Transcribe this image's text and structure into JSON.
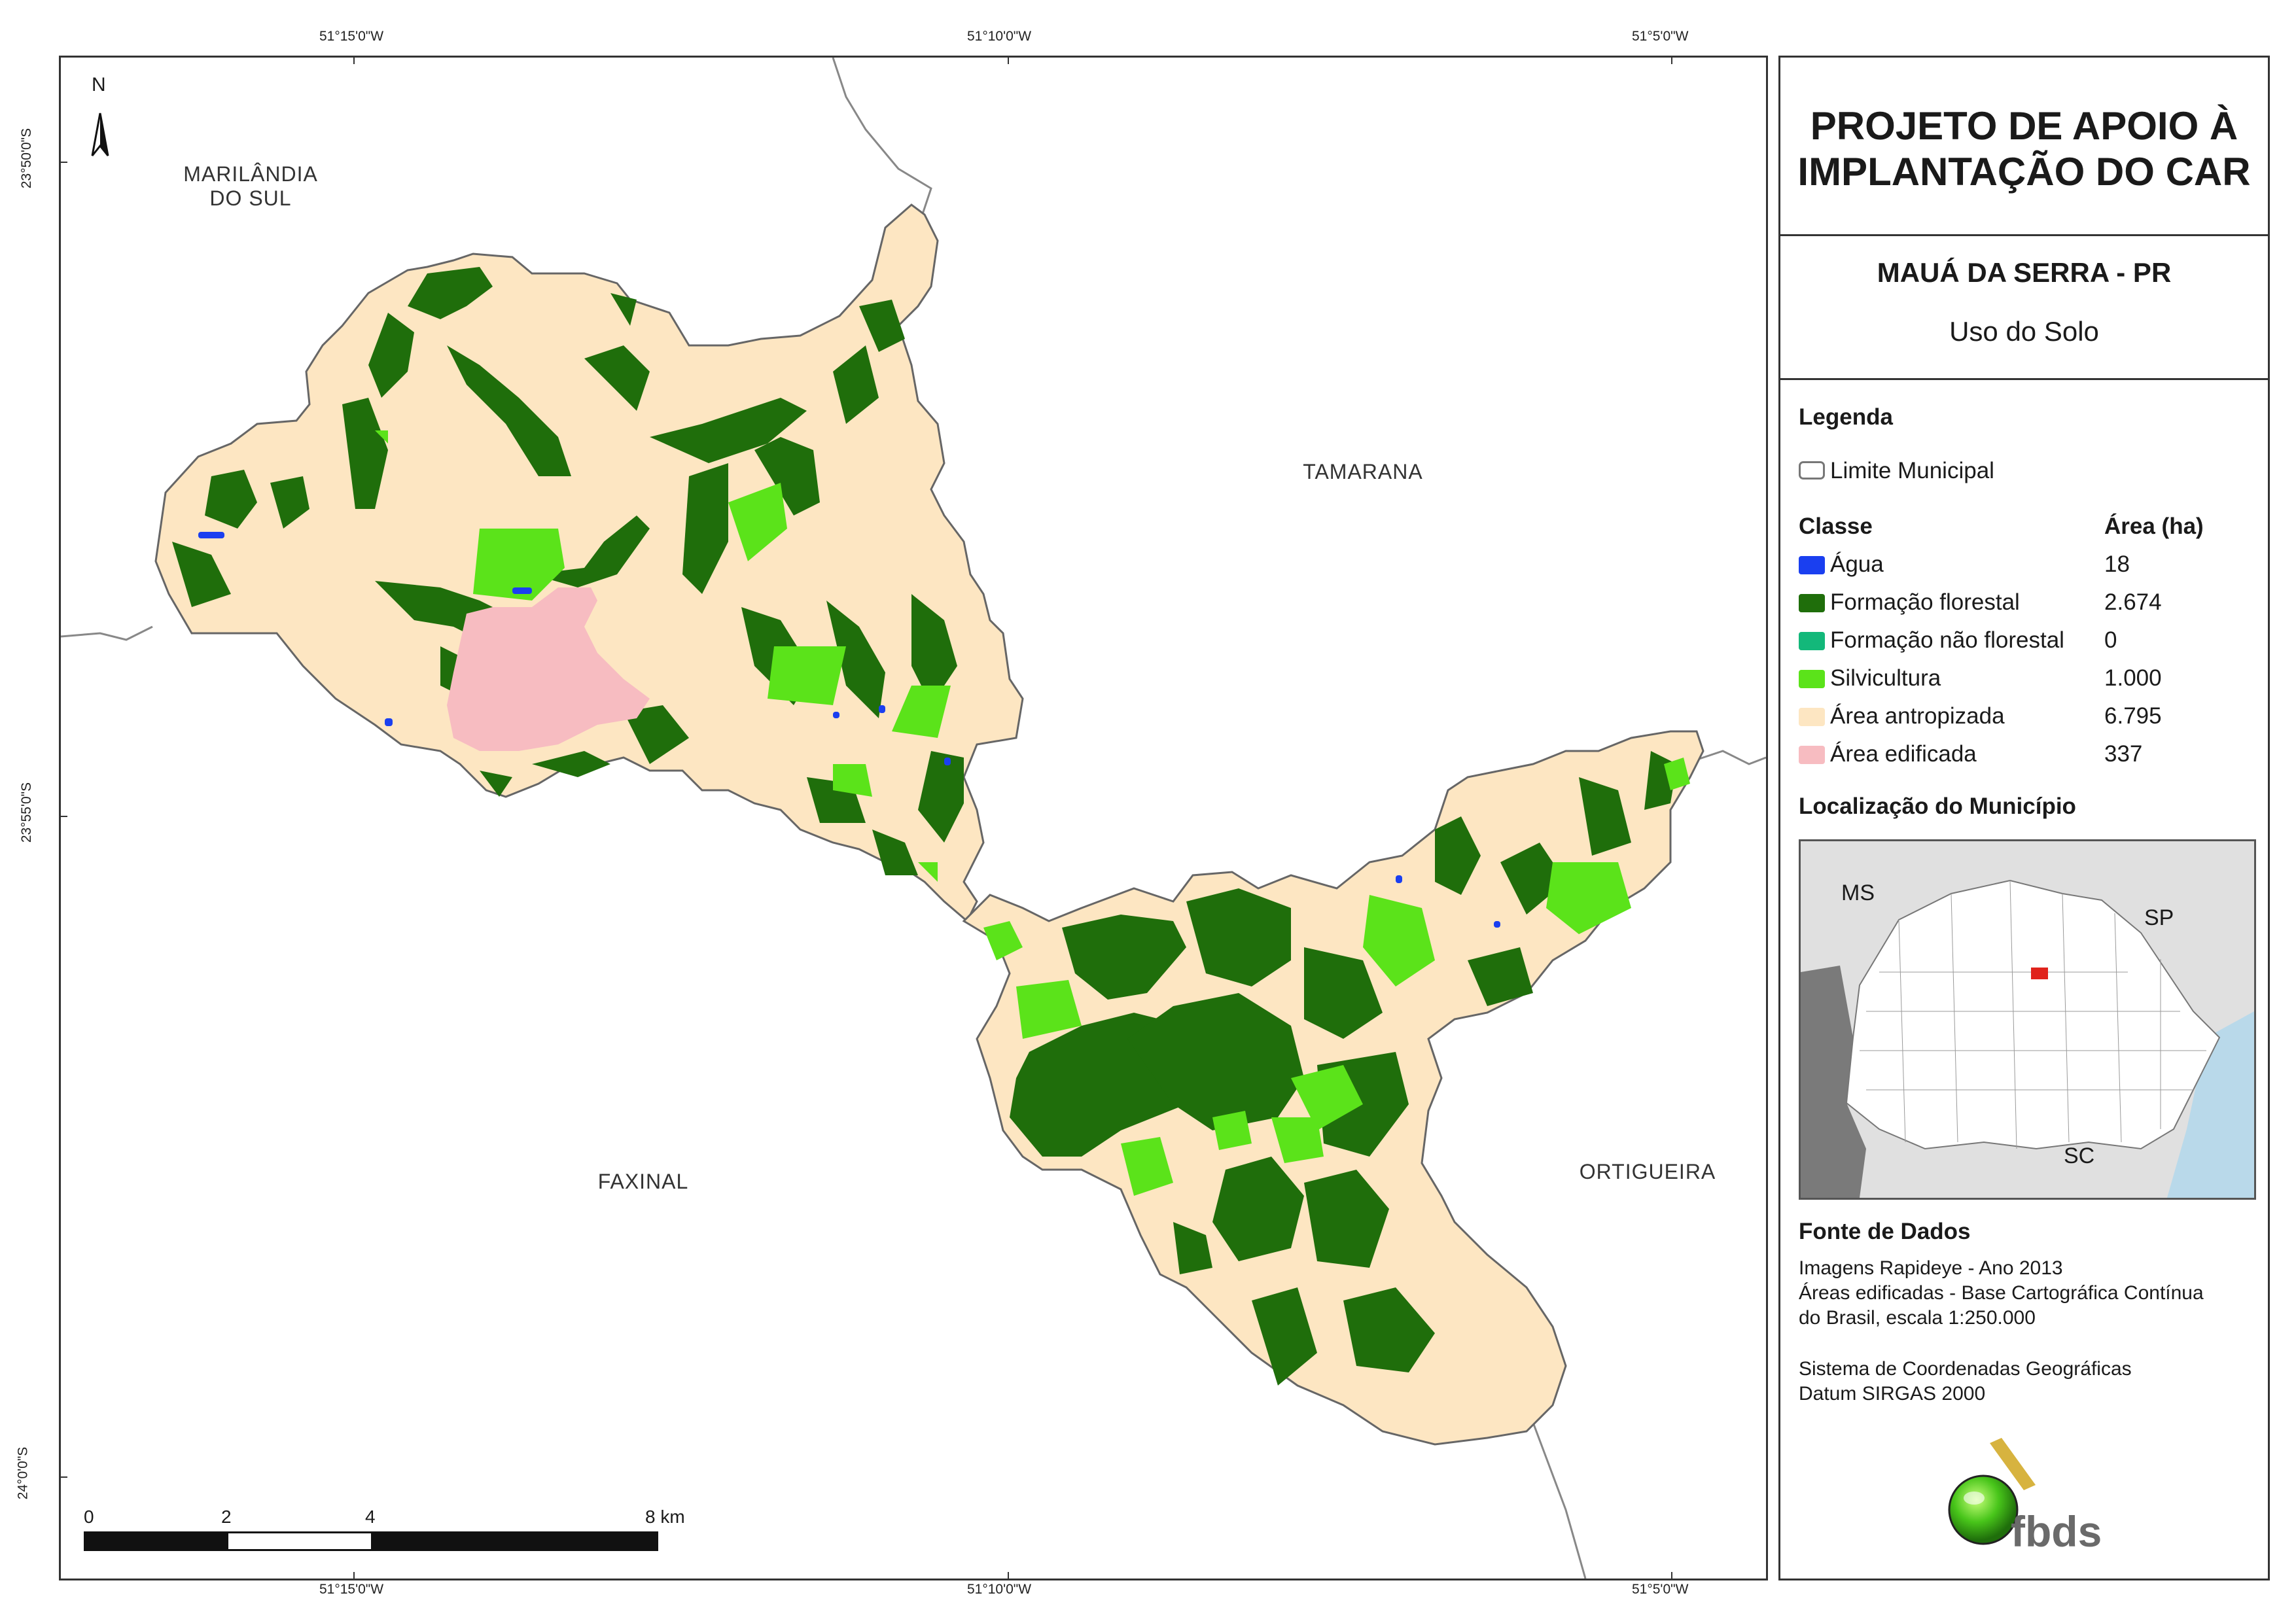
{
  "coordinates": {
    "top": [
      "51°15'0\"W",
      "51°10'0\"W",
      "51°5'0\"W"
    ],
    "bottom": [
      "51°15'0\"W",
      "51°10'0\"W",
      "51°5'0\"W"
    ],
    "left": [
      "23°50'0\"S",
      "23°55'0\"S",
      "24°0'0\"S"
    ]
  },
  "map": {
    "north_label": "N",
    "places": {
      "marilandia_line1": "MARILÂNDIA",
      "marilandia_line2": "DO SUL",
      "tamarana": "TAMARANA",
      "faxinal": "FAXINAL",
      "ortigueira": "ORTIGUEIRA"
    },
    "scalebar": {
      "ticks": [
        "0",
        "2",
        "4",
        "8 km"
      ]
    },
    "colors": {
      "agua": "#1a3ff0",
      "formacao_florestal": "#1f6e0b",
      "formacao_nao_florestal": "#13b87a",
      "silvicultura": "#5be31a",
      "area_antropizada": "#fde6c2",
      "area_edificada": "#f7bcc1"
    }
  },
  "panel": {
    "title_line1": "PROJETO DE APOIO À",
    "title_line2": "IMPLANTAÇÃO DO CAR",
    "municipality": "MAUÁ DA SERRA - PR",
    "subtitle": "Uso do Solo",
    "legend_heading": "Legenda",
    "limite_label": "Limite Municipal",
    "class_heading": "Classe",
    "area_heading": "Área (ha)",
    "classes": [
      {
        "label": "Água",
        "area": "18",
        "color": "#1a3ff0"
      },
      {
        "label": "Formação florestal",
        "area": "2.674",
        "color": "#1f6e0b"
      },
      {
        "label": "Formação não florestal",
        "area": "0",
        "color": "#13b87a"
      },
      {
        "label": "Silvicultura",
        "area": "1.000",
        "color": "#5be31a"
      },
      {
        "label": "Área antropizada",
        "area": "6.795",
        "color": "#fde6c2"
      },
      {
        "label": "Área edificada",
        "area": "337",
        "color": "#f7bcc1"
      }
    ],
    "location_heading": "Localização do Município",
    "location_map": {
      "ms": "MS",
      "sp": "SP",
      "sc": "SC"
    },
    "source_heading": "Fonte de Dados",
    "source_lines": [
      "Imagens Rapideye - Ano 2013",
      "Áreas edificadas - Base Cartográfica Contínua",
      "do Brasil, escala 1:250.000"
    ],
    "crs_lines": [
      "Sistema de Coordenadas Geográficas",
      "Datum SIRGAS 2000"
    ],
    "logo_text": "fbds"
  }
}
